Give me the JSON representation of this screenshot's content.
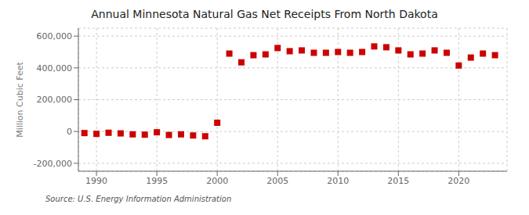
{
  "chart_data": {
    "type": "scatter",
    "title": "Annual Minnesota Natural Gas Net Receipts From North Dakota",
    "ylabel": "Million Cubic Feet",
    "annotations": [
      "Source: U.S. Energy Information Administration"
    ],
    "x": [
      1989,
      1990,
      1991,
      1992,
      1993,
      1994,
      1995,
      1996,
      1997,
      1998,
      1999,
      2000,
      2001,
      2002,
      2003,
      2004,
      2005,
      2006,
      2007,
      2008,
      2009,
      2010,
      2011,
      2012,
      2013,
      2014,
      2015,
      2016,
      2017,
      2018,
      2019,
      2020,
      2021,
      2022,
      2023
    ],
    "values": [
      -10000,
      -15000,
      -8000,
      -12000,
      -18000,
      -20000,
      -5000,
      -22000,
      -18000,
      -25000,
      -30000,
      55000,
      490000,
      435000,
      480000,
      485000,
      525000,
      505000,
      510000,
      495000,
      495000,
      500000,
      495000,
      500000,
      535000,
      530000,
      510000,
      485000,
      490000,
      510000,
      495000,
      415000,
      465000,
      490000,
      480000
    ],
    "color": "#cc0000",
    "marker": "square",
    "xlim": [
      1988.5,
      2024
    ],
    "xticks": [
      1990,
      1995,
      2000,
      2005,
      2010,
      2015,
      2020
    ],
    "ylim": [
      -250000,
      650000
    ],
    "yticks": [
      {
        "value": -200000,
        "label": "-200,000"
      },
      0,
      {
        "value": 200000,
        "label": "200,000"
      },
      {
        "value": 400000,
        "label": "400,000"
      },
      {
        "value": 600000,
        "label": "600,000"
      }
    ],
    "grid": true
  }
}
